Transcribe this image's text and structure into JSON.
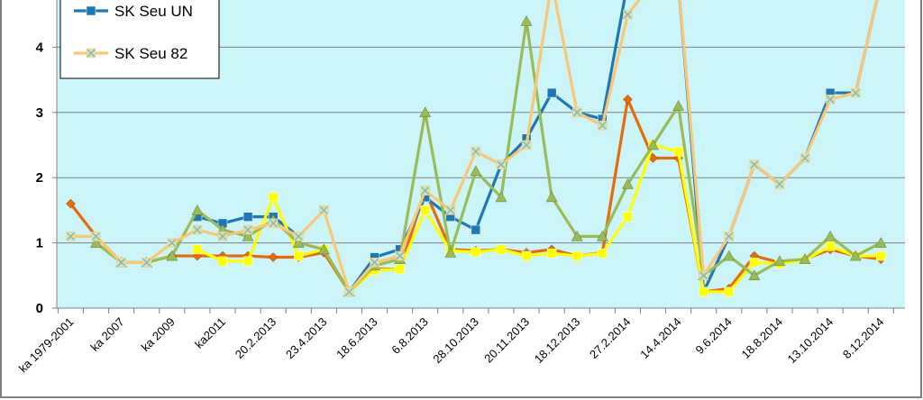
{
  "chart_data": {
    "type": "line",
    "ylim": [
      0,
      4.6
    ],
    "yticks": [
      0,
      1,
      2,
      3,
      4
    ],
    "grid": true,
    "legend_position": "top-left",
    "x_tick_labels": [
      "ka 1979-2001",
      "ka 2007",
      "ka 2009",
      "ka2011",
      "20.2.2013",
      "23.4.2013",
      "18.6.2013",
      "6.8.2013",
      "28.10.2013",
      "20.11.2013",
      "18.12.2013",
      "27.2.2014",
      "14.4.2014",
      "9.6.2014",
      "18.8.2014",
      "13.10.2014",
      "8.12.2014"
    ],
    "series": [
      {
        "name": "",
        "color": "#e46c0a",
        "marker": "diamond",
        "values": [
          1.6,
          1.1,
          0.7,
          0.7,
          0.8,
          0.8,
          0.8,
          0.8,
          0.78,
          0.78,
          0.85,
          0.25,
          0.6,
          0.6,
          1.8,
          0.9,
          0.88,
          0.9,
          0.85,
          0.9,
          0.8,
          0.85,
          3.2,
          2.3,
          2.3,
          0.25,
          0.3,
          0.8,
          0.7,
          0.75,
          0.9,
          0.8,
          0.75
        ]
      },
      {
        "name": "SK Seu UN",
        "color": "#1f77b4",
        "marker": "square",
        "values": [
          null,
          null,
          null,
          null,
          null,
          1.4,
          1.3,
          1.4,
          1.4,
          1.1,
          null,
          0.25,
          0.78,
          0.9,
          1.7,
          1.4,
          1.2,
          2.2,
          2.6,
          3.3,
          3.0,
          2.9,
          5.0,
          5.0,
          5.0,
          0.25,
          1.1,
          2.2,
          1.9,
          2.3,
          3.3,
          3.3,
          5.0
        ]
      },
      {
        "name": "",
        "color": "#ffff00",
        "marker": "square",
        "values": [
          null,
          null,
          null,
          null,
          null,
          0.9,
          0.72,
          0.72,
          1.7,
          0.8,
          0.9,
          0.25,
          0.58,
          0.6,
          1.5,
          0.88,
          0.86,
          0.9,
          0.8,
          0.84,
          0.8,
          0.84,
          1.4,
          2.5,
          2.4,
          0.25,
          0.25,
          0.7,
          0.68,
          0.74,
          0.95,
          0.8,
          0.8
        ]
      },
      {
        "name": "",
        "color": "#9bbb59",
        "marker": "triangle",
        "values": [
          null,
          1.0,
          0.7,
          0.7,
          0.8,
          1.5,
          1.2,
          1.1,
          1.35,
          1.0,
          0.9,
          0.25,
          0.65,
          0.75,
          3.0,
          0.85,
          2.1,
          1.7,
          4.4,
          1.7,
          1.1,
          1.1,
          1.9,
          2.5,
          3.1,
          0.5,
          0.8,
          0.5,
          0.72,
          0.75,
          1.1,
          0.8,
          1.0
        ]
      },
      {
        "name": "SK Seu 82",
        "color": "#fac775",
        "marker": "x",
        "values": [
          1.1,
          1.1,
          0.7,
          0.7,
          1.0,
          1.2,
          1.1,
          1.2,
          1.3,
          1.1,
          1.5,
          0.25,
          0.7,
          0.8,
          1.8,
          1.5,
          2.4,
          2.2,
          2.5,
          5.0,
          3.0,
          2.8,
          4.5,
          5.0,
          5.0,
          0.5,
          1.1,
          2.2,
          1.9,
          2.3,
          3.2,
          3.3,
          5.0
        ]
      }
    ]
  }
}
